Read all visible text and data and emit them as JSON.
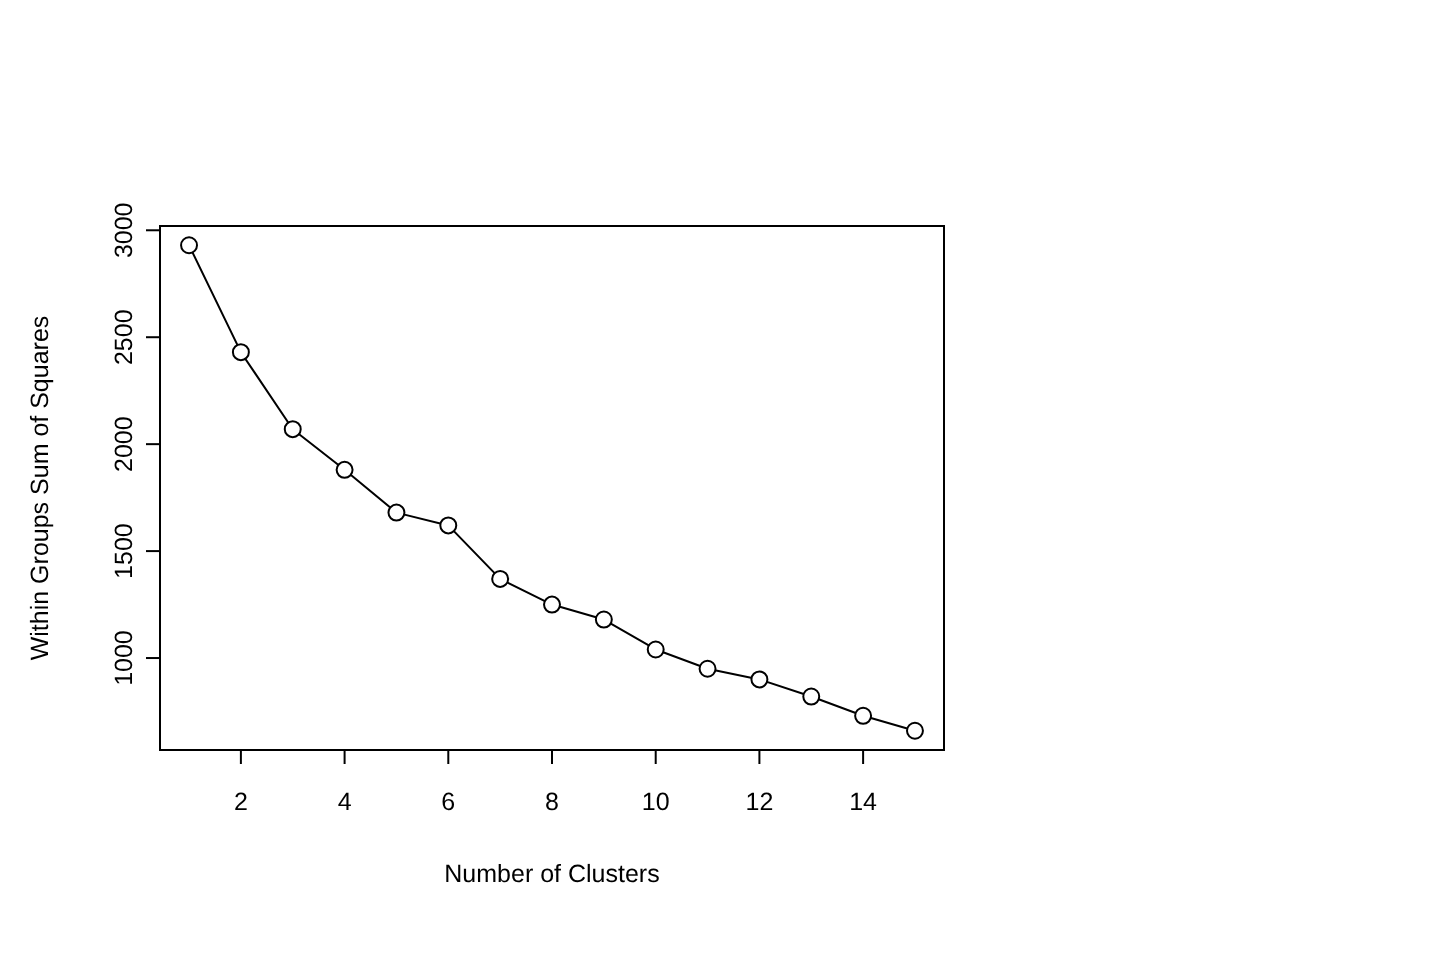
{
  "chart_data": {
    "type": "line",
    "xlabel": "Number of Clusters",
    "ylabel": "Within Groups Sum of Squares",
    "x": [
      1,
      2,
      3,
      4,
      5,
      6,
      7,
      8,
      9,
      10,
      11,
      12,
      13,
      14,
      15
    ],
    "values": [
      2930,
      2430,
      2070,
      1880,
      1680,
      1620,
      1370,
      1250,
      1180,
      1040,
      950,
      900,
      820,
      730,
      660
    ],
    "color": "#000000",
    "marker": "circle",
    "line_style": "solid",
    "grid": false,
    "xlim": [
      0.44,
      15.56
    ],
    "ylim": [
      570,
      3020
    ],
    "xticks": [
      2,
      4,
      6,
      8,
      10,
      12,
      14
    ],
    "yticks": [
      1000,
      1500,
      2000,
      2500,
      3000
    ]
  }
}
